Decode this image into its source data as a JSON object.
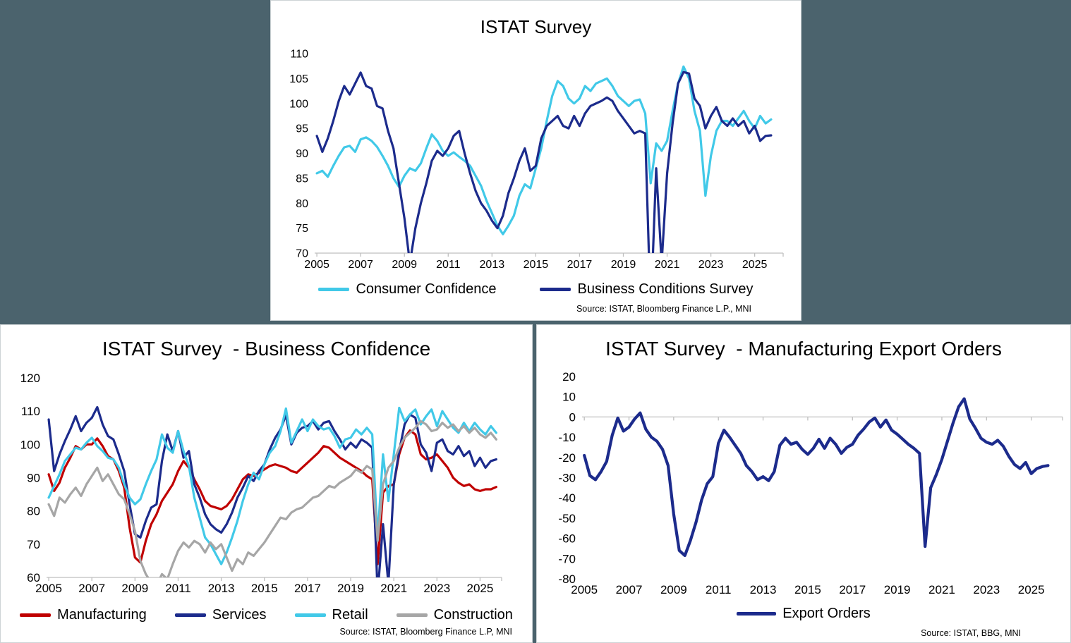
{
  "page": {
    "background_color": "#4B636D"
  },
  "colors": {
    "axis": "#BFBFBF",
    "zero_gridline": "#C6C6C6",
    "consumer_confidence": "#41C9E8",
    "business_conditions": "#1C2B8C",
    "manufacturing": "#C00000",
    "services": "#1C2B8C",
    "retail": "#41C9E8",
    "construction": "#A6A6A6",
    "export_orders": "#1C2B8C"
  },
  "charts": [
    {
      "title": "ISTAT Survey",
      "source": "Source: ISTAT, Bloomberg Finance L.P., MNI",
      "chart_data": {
        "type": "line",
        "title": "ISTAT Survey",
        "xlabel": "",
        "ylabel": "",
        "x_unit": "year",
        "x_start": 2005,
        "x_step": 0.25,
        "xlim": [
          2004.9,
          2026.3
        ],
        "ylim": [
          70,
          110
        ],
        "ytick_step": 5,
        "x_ticks": [
          2005,
          2007,
          2009,
          2011,
          2013,
          2015,
          2017,
          2019,
          2021,
          2023,
          2025
        ],
        "grid": false,
        "x_axis_at": 70,
        "legend_position": "bottom",
        "series": [
          {
            "name": "Consumer Confidence",
            "color": "#41C9E8",
            "values": [
              86,
              86.5,
              85.3,
              87.5,
              89.5,
              91.2,
              91.5,
              90.3,
              92.8,
              93.2,
              92.5,
              91.3,
              89.5,
              87.5,
              85,
              83.3,
              85.5,
              87,
              86.5,
              88,
              91,
              93.8,
              92.5,
              90.5,
              89.5,
              90.2,
              89.3,
              88.5,
              87.5,
              85.5,
              83.5,
              80.5,
              78,
              75.5,
              73.8,
              75.5,
              77.5,
              81.5,
              83.8,
              83,
              87,
              91,
              96.5,
              101.5,
              104.5,
              103.5,
              101,
              100,
              101,
              103.5,
              102.5,
              104,
              104.5,
              105,
              103.5,
              101.5,
              100.5,
              99.5,
              100.5,
              100.8,
              98,
              84,
              92,
              90.5,
              92.5,
              98.5,
              104,
              107.4,
              105,
              98.5,
              94.5,
              81.5,
              89.5,
              94.5,
              96.5,
              96.5,
              95.5,
              97,
              98.5,
              96.5,
              95,
              97.5,
              96,
              96.8
            ]
          },
          {
            "name": "Business Conditions Survey",
            "color": "#1C2B8C",
            "values": [
              93.5,
              90.3,
              93,
              96.5,
              100.5,
              103.5,
              101.8,
              104,
              106.2,
              103.5,
              103,
              99.5,
              99,
              94.5,
              91,
              84,
              77,
              68,
              75,
              80,
              84,
              88.5,
              90.5,
              89.5,
              91,
              93.5,
              94.5,
              90,
              86,
              82.5,
              80,
              78.5,
              76.5,
              75,
              77.5,
              82,
              85,
              88.5,
              91,
              86.5,
              87.5,
              93,
              95.5,
              96.5,
              97.5,
              95.5,
              95,
              97.5,
              95.5,
              98,
              99.5,
              100,
              100.5,
              101.2,
              100.5,
              98.5,
              97,
              95.5,
              94,
              94.5,
              94,
              58,
              87,
              68,
              86,
              96,
              104,
              106.3,
              106,
              101,
              99.5,
              95,
              97.5,
              99.3,
              96.5,
              95.5,
              97,
              95.5,
              96.5,
              94,
              95.5,
              92.5,
              93.5,
              93.6
            ]
          }
        ]
      }
    },
    {
      "title": "ISTAT Survey  - Business Confidence",
      "source": "Source: ISTAT, Bloomberg Finance L.P, MNI",
      "chart_data": {
        "type": "line",
        "title": "ISTAT Survey - Business Confidence",
        "xlabel": "",
        "ylabel": "",
        "x_unit": "year",
        "x_start": 2005,
        "x_step": 0.25,
        "xlim": [
          2004.9,
          2026.0
        ],
        "ylim": [
          60,
          120
        ],
        "ytick_step": 10,
        "x_ticks": [
          2005,
          2007,
          2009,
          2011,
          2013,
          2015,
          2017,
          2019,
          2021,
          2023,
          2025
        ],
        "grid": false,
        "x_axis_at": 60,
        "legend_position": "bottom",
        "series": [
          {
            "name": "Manufacturing",
            "color": "#C00000",
            "values": [
              91,
              86,
              88.5,
              93,
              96,
              99.5,
              98.5,
              100,
              100,
              101.8,
              99.5,
              96.5,
              95.5,
              92,
              87,
              75,
              66,
              64.5,
              71,
              76,
              79,
              83,
              85.5,
              88,
              92,
              95,
              93,
              89.5,
              86.5,
              83,
              81.5,
              81,
              80.5,
              81.5,
              83.5,
              86.5,
              89.5,
              91,
              90.5,
              91.5,
              92.5,
              93.5,
              94,
              93.5,
              93,
              92,
              91.5,
              93,
              94.5,
              96,
              97.5,
              99.5,
              99,
              97.5,
              96,
              95,
              94,
              93,
              92,
              90.5,
              89.5,
              64,
              85.5,
              87.5,
              88,
              97,
              102,
              104.2,
              103,
              97,
              95.5,
              96,
              97,
              95,
              93,
              90,
              88.5,
              87.5,
              88,
              86.5,
              86,
              86.5,
              86.5,
              87.2
            ]
          },
          {
            "name": "Services",
            "color": "#1C2B8C",
            "values": [
              107.5,
              92,
              97,
              101,
              104.5,
              108.5,
              104,
              106.5,
              108,
              111.2,
              106,
              102.5,
              101.5,
              97,
              92,
              82,
              73,
              72,
              77,
              81,
              82,
              95,
              103,
              98,
              104,
              96,
              98,
              88,
              84,
              79,
              76,
              74.5,
              73.5,
              76,
              79.5,
              84,
              87,
              90.5,
              89,
              92,
              94,
              98.5,
              102,
              104.5,
              108.8,
              100,
              103.5,
              105,
              105.5,
              107,
              104.5,
              106.5,
              107,
              104,
              101.5,
              98.5,
              100.5,
              99,
              101.5,
              100.5,
              99,
              55,
              76,
              58,
              88,
              98,
              106,
              109,
              108,
              100,
              97.5,
              92,
              100.5,
              101.5,
              98,
              97,
              99.5,
              96.5,
              98,
              93.5,
              96,
              93,
              95,
              95.5
            ]
          },
          {
            "name": "Retail",
            "color": "#41C9E8",
            "values": [
              84,
              87.5,
              91,
              95,
              97,
              99,
              98.5,
              100.5,
              102,
              99.5,
              98,
              96,
              95.5,
              93,
              88,
              84,
              82,
              83.5,
              88,
              92,
              95.5,
              103,
              99,
              97.5,
              104,
              98,
              93.5,
              84,
              78,
              72,
              70,
              67,
              64,
              67.5,
              72,
              77,
              83,
              88,
              91.5,
              89.5,
              94,
              97.5,
              99.5,
              104,
              110.8,
              100.5,
              104,
              107.5,
              104,
              107.5,
              105.5,
              104.5,
              105,
              102.5,
              99,
              101.5,
              102,
              104.5,
              103,
              105,
              103,
              72,
              97,
              83,
              97,
              111,
              107,
              109,
              110.5,
              106,
              108.5,
              110.5,
              105.5,
              110,
              107.5,
              105,
              103.5,
              106.5,
              104,
              106.5,
              104.5,
              103,
              105.5,
              103.5
            ]
          },
          {
            "name": "Construction",
            "color": "#A6A6A6",
            "values": [
              82,
              78.5,
              84,
              82.5,
              85,
              87,
              84.5,
              88,
              90.5,
              93,
              89,
              91,
              88,
              85,
              83.5,
              79,
              74,
              65,
              61,
              58.5,
              57.5,
              61,
              59.5,
              64,
              68,
              70.5,
              69,
              71,
              70,
              67.5,
              70.5,
              68.5,
              70,
              66,
              62,
              65.5,
              64,
              67.5,
              66.5,
              68.5,
              70.5,
              73,
              75.5,
              78,
              77.5,
              79.5,
              80.5,
              81,
              82.5,
              84,
              84.5,
              86,
              87.5,
              87,
              88.5,
              89.5,
              90.5,
              92.5,
              91.5,
              93.5,
              92.5,
              71,
              88,
              93,
              95,
              99,
              102,
              103.5,
              105,
              107,
              106,
              104,
              104.5,
              106.5,
              105,
              106,
              104,
              105.5,
              103.5,
              105,
              103,
              102,
              103.5,
              101.5
            ]
          }
        ]
      }
    },
    {
      "title": "ISTAT Survey  - Manufacturing Export Orders",
      "source": "Source: ISTAT, BBG, MNI",
      "chart_data": {
        "type": "line",
        "title": "ISTAT Survey - Manufacturing Export Orders",
        "xlabel": "",
        "ylabel": "",
        "x_unit": "year",
        "x_start": 2005,
        "x_step": 0.25,
        "xlim": [
          2004.9,
          2026.4
        ],
        "ylim": [
          -80,
          20
        ],
        "ytick_step": 10,
        "x_ticks": [
          2005,
          2007,
          2009,
          2011,
          2013,
          2015,
          2017,
          2019,
          2021,
          2023,
          2025
        ],
        "grid": false,
        "x_axis_at": 0,
        "zero_axis": true,
        "legend_position": "bottom",
        "series": [
          {
            "name": "Export Orders",
            "color": "#1C2B8C",
            "values": [
              -19,
              -29,
              -31,
              -27,
              -22,
              -9,
              -0.5,
              -7,
              -5,
              -1,
              2,
              -6,
              -10,
              -12,
              -16,
              -24,
              -48,
              -66,
              -68.5,
              -61,
              -52,
              -41,
              -33,
              -29.5,
              -13,
              -6.5,
              -10,
              -14,
              -18,
              -24,
              -27,
              -31,
              -29.5,
              -31.5,
              -27,
              -14,
              -10.5,
              -13.5,
              -12.5,
              -16,
              -18.5,
              -15.5,
              -11,
              -15.5,
              -10.5,
              -13.5,
              -18,
              -15,
              -13.5,
              -9,
              -6,
              -2.5,
              -0.5,
              -5,
              -1.5,
              -6.5,
              -8.5,
              -11,
              -13.5,
              -15.5,
              -18,
              -64,
              -35,
              -28.5,
              -21,
              -12,
              -3,
              5,
              9,
              -1,
              -5.5,
              -10.5,
              -12.5,
              -13.5,
              -11.5,
              -14.5,
              -19.5,
              -23.5,
              -25.5,
              -22.5,
              -28,
              -25.5,
              -24.5,
              -24
            ]
          }
        ]
      }
    }
  ]
}
